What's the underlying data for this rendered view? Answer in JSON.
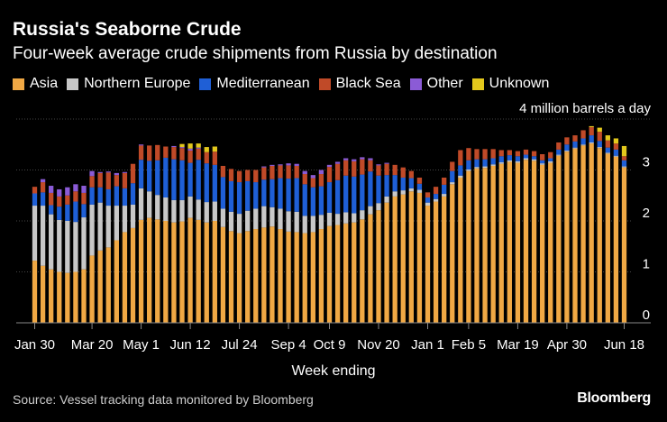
{
  "chart_data": {
    "type": "bar",
    "stacked": true,
    "title": "Russia's Seaborne Crude",
    "subtitle": "Four-week average crude shipments from Russia by destination",
    "unit_label": "4 million barrels a day",
    "xlabel": "Week ending",
    "ylabel": "",
    "ylim": [
      0,
      4
    ],
    "yticks": [
      0,
      1,
      2,
      3
    ],
    "grid": true,
    "legend_position": "top-left",
    "x_tick_labels": [
      "Jan 30",
      "Mar 20",
      "May 1",
      "Jun 12",
      "Jul 24",
      "Sep 4",
      "Oct 9",
      "Nov 20",
      "Jan 1",
      "Feb 5",
      "Mar 19",
      "Apr 30",
      "Jun 18"
    ],
    "x_tick_indices": [
      0,
      7,
      13,
      19,
      25,
      31,
      36,
      42,
      48,
      53,
      59,
      65,
      72
    ],
    "series": [
      {
        "name": "Asia",
        "color": "#f0a844",
        "values": [
          1.22,
          1.12,
          1.05,
          1.0,
          0.98,
          1.0,
          1.05,
          1.32,
          1.42,
          1.48,
          1.62,
          1.78,
          1.86,
          2.02,
          2.06,
          2.03,
          2.0,
          1.97,
          1.99,
          2.06,
          2.02,
          1.97,
          2.0,
          1.88,
          1.8,
          1.76,
          1.8,
          1.84,
          1.87,
          1.89,
          1.84,
          1.79,
          1.78,
          1.76,
          1.78,
          1.84,
          1.9,
          1.92,
          1.95,
          1.97,
          2.03,
          2.13,
          2.21,
          2.36,
          2.48,
          2.52,
          2.58,
          2.55,
          2.3,
          2.38,
          2.48,
          2.72,
          2.85,
          2.98,
          3.03,
          3.04,
          3.08,
          3.12,
          3.16,
          3.14,
          3.2,
          3.18,
          3.1,
          3.14,
          3.28,
          3.36,
          3.42,
          3.48,
          3.52,
          3.43,
          3.32,
          3.26,
          3.05
        ]
      },
      {
        "name": "Northern Europe",
        "color": "#c8c8c8",
        "values": [
          1.08,
          1.18,
          1.08,
          1.02,
          1.02,
          0.98,
          1.02,
          1.0,
          0.94,
          0.82,
          0.68,
          0.52,
          0.46,
          0.62,
          0.52,
          0.48,
          0.46,
          0.44,
          0.42,
          0.42,
          0.4,
          0.4,
          0.38,
          0.36,
          0.38,
          0.38,
          0.4,
          0.4,
          0.42,
          0.38,
          0.4,
          0.4,
          0.4,
          0.34,
          0.32,
          0.28,
          0.26,
          0.22,
          0.22,
          0.18,
          0.18,
          0.16,
          0.14,
          0.12,
          0.1,
          0.08,
          0.06,
          0.06,
          0.06,
          0.05,
          0.05,
          0.04,
          0.04,
          0.03,
          0.03,
          0.03,
          0.03,
          0.03,
          0.03,
          0.03,
          0.03,
          0.03,
          0.03,
          0.03,
          0.02,
          0.02,
          0.02,
          0.02,
          0.02,
          0.02,
          0.02,
          0.02,
          0.02
        ]
      },
      {
        "name": "Mediterranean",
        "color": "#1f5fd6",
        "values": [
          0.24,
          0.26,
          0.18,
          0.26,
          0.32,
          0.4,
          0.26,
          0.34,
          0.3,
          0.32,
          0.38,
          0.34,
          0.42,
          0.56,
          0.6,
          0.68,
          0.78,
          0.8,
          0.78,
          0.66,
          0.78,
          0.76,
          0.72,
          0.62,
          0.6,
          0.62,
          0.58,
          0.52,
          0.52,
          0.55,
          0.6,
          0.64,
          0.66,
          0.62,
          0.56,
          0.56,
          0.6,
          0.66,
          0.72,
          0.72,
          0.7,
          0.68,
          0.54,
          0.42,
          0.32,
          0.25,
          0.2,
          0.12,
          0.1,
          0.1,
          0.18,
          0.22,
          0.2,
          0.18,
          0.15,
          0.14,
          0.12,
          0.12,
          0.1,
          0.1,
          0.07,
          0.06,
          0.06,
          0.06,
          0.1,
          0.12,
          0.12,
          0.12,
          0.14,
          0.12,
          0.1,
          0.12,
          0.12
        ]
      },
      {
        "name": "Black Sea",
        "color": "#c04a28",
        "values": [
          0.13,
          0.2,
          0.24,
          0.2,
          0.18,
          0.2,
          0.22,
          0.22,
          0.28,
          0.33,
          0.22,
          0.3,
          0.38,
          0.28,
          0.3,
          0.3,
          0.22,
          0.24,
          0.24,
          0.24,
          0.22,
          0.22,
          0.26,
          0.22,
          0.24,
          0.22,
          0.22,
          0.24,
          0.24,
          0.26,
          0.25,
          0.26,
          0.24,
          0.2,
          0.18,
          0.24,
          0.3,
          0.32,
          0.3,
          0.3,
          0.3,
          0.22,
          0.2,
          0.22,
          0.2,
          0.2,
          0.14,
          0.12,
          0.1,
          0.14,
          0.14,
          0.18,
          0.3,
          0.24,
          0.2,
          0.2,
          0.18,
          0.12,
          0.1,
          0.1,
          0.1,
          0.1,
          0.12,
          0.12,
          0.14,
          0.14,
          0.12,
          0.16,
          0.16,
          0.18,
          0.14,
          0.12,
          0.08
        ]
      },
      {
        "name": "Other",
        "color": "#8b5bd6",
        "values": [
          0.0,
          0.06,
          0.14,
          0.14,
          0.16,
          0.14,
          0.14,
          0.1,
          0.02,
          0.02,
          0.04,
          0.02,
          0.0,
          0.02,
          0.0,
          0.0,
          0.0,
          0.02,
          0.02,
          0.04,
          0.02,
          0.0,
          0.0,
          0.0,
          0.0,
          0.0,
          0.0,
          0.0,
          0.02,
          0.02,
          0.02,
          0.04,
          0.04,
          0.06,
          0.06,
          0.08,
          0.04,
          0.04,
          0.04,
          0.04,
          0.04,
          0.04,
          0.02,
          0.02,
          0.0,
          0.0,
          0.0,
          0.0,
          0.0,
          0.0,
          0.0,
          0.0,
          0.0,
          0.0,
          0.0,
          0.0,
          0.0,
          0.0,
          0.0,
          0.0,
          0.0,
          0.0,
          0.0,
          0.0,
          0.0,
          0.0,
          0.0,
          0.0,
          0.0,
          0.0,
          0.0,
          0.0,
          0.0
        ]
      },
      {
        "name": "Unknown",
        "color": "#e3c81c",
        "values": [
          0.0,
          0.0,
          0.0,
          0.0,
          0.0,
          0.0,
          0.0,
          0.0,
          0.0,
          0.0,
          0.0,
          0.0,
          0.0,
          0.0,
          0.0,
          0.0,
          0.0,
          0.0,
          0.06,
          0.1,
          0.08,
          0.1,
          0.1,
          0.0,
          0.0,
          0.0,
          0.0,
          0.0,
          0.0,
          0.0,
          0.0,
          0.0,
          0.0,
          0.0,
          0.0,
          0.0,
          0.0,
          0.0,
          0.0,
          0.0,
          0.0,
          0.0,
          0.0,
          0.0,
          0.0,
          0.0,
          0.0,
          0.0,
          0.0,
          0.0,
          0.0,
          0.0,
          0.0,
          0.0,
          0.0,
          0.0,
          0.0,
          0.0,
          0.0,
          0.0,
          0.0,
          0.0,
          0.0,
          0.0,
          0.0,
          0.0,
          0.0,
          0.0,
          0.02,
          0.08,
          0.1,
          0.1,
          0.2
        ]
      }
    ]
  },
  "source": "Source: Vessel tracking data monitored by Bloomberg",
  "brand": "Bloomberg"
}
